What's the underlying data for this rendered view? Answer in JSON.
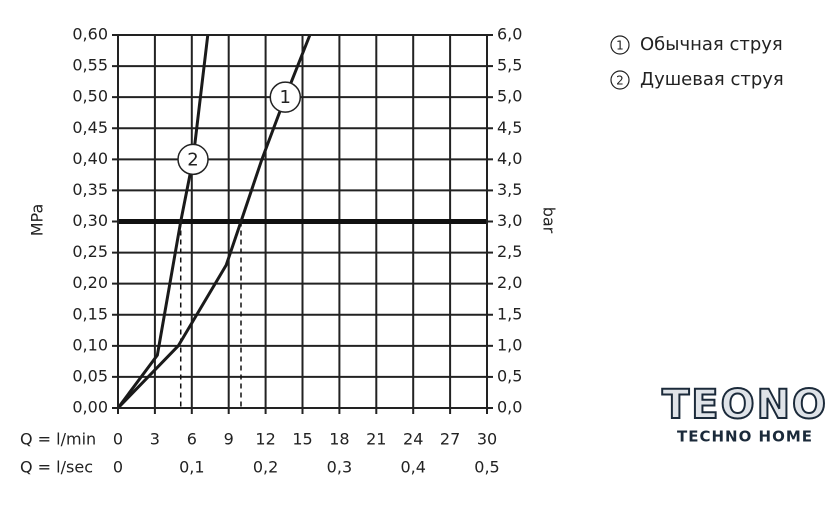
{
  "chart_data": {
    "type": "line",
    "y_title": "MPa",
    "y2_title": "bar",
    "x_title": "Q = l/min",
    "x2_title": "Q = l/sec",
    "series": [
      {
        "name": "Обычная струя",
        "marker_label": "1",
        "color": "#1a1a1a",
        "x": [
          0,
          4.9,
          8.8,
          10,
          11.7,
          13.6,
          15.6
        ],
        "values": [
          0,
          0.1,
          0.23,
          0.3,
          0.4,
          0.5,
          0.6
        ]
      },
      {
        "name": "Душевая струя",
        "marker_label": "2",
        "color": "#1a1a1a",
        "x": [
          0,
          3.2,
          5.1,
          6.1,
          7.3
        ],
        "values": [
          0,
          0.085,
          0.3,
          0.4,
          0.6
        ]
      }
    ],
    "xlim": [
      0,
      30
    ],
    "xticks": [
      0,
      3,
      6,
      9,
      12,
      15,
      18,
      21,
      24,
      27,
      30
    ],
    "x2lim": [
      0,
      0.5
    ],
    "x2ticks": [
      0,
      {
        "value": 0.1,
        "label": "0,1"
      },
      {
        "value": 0.2,
        "label": "0,2"
      },
      {
        "value": 0.3,
        "label": "0,3"
      },
      {
        "value": 0.4,
        "label": "0,4"
      },
      {
        "value": 0.5,
        "label": "0,5"
      }
    ],
    "ylim": [
      0,
      0.6
    ],
    "yticks": [
      {
        "value": 0,
        "label": "0,00"
      },
      {
        "value": 0.05,
        "label": "0,05"
      },
      {
        "value": 0.1,
        "label": "0,10"
      },
      {
        "value": 0.15,
        "label": "0,15"
      },
      {
        "value": 0.2,
        "label": "0,20"
      },
      {
        "value": 0.25,
        "label": "0,25"
      },
      {
        "value": 0.3,
        "label": "0,30"
      },
      {
        "value": 0.35,
        "label": "0,35"
      },
      {
        "value": 0.4,
        "label": "0,40"
      },
      {
        "value": 0.45,
        "label": "0,45"
      },
      {
        "value": 0.5,
        "label": "0,50"
      },
      {
        "value": 0.55,
        "label": "0,55"
      },
      {
        "value": 0.6,
        "label": "0,60"
      }
    ],
    "y2lim": [
      0,
      6
    ],
    "y2ticks": [
      {
        "value": 0,
        "label": "0,0"
      },
      {
        "value": 0.5,
        "label": "0,5"
      },
      {
        "value": 1,
        "label": "1,0"
      },
      {
        "value": 1.5,
        "label": "1,5"
      },
      {
        "value": 2,
        "label": "2,0"
      },
      {
        "value": 2.5,
        "label": "2,5"
      },
      {
        "value": 3,
        "label": "3,0"
      },
      {
        "value": 3.5,
        "label": "3,5"
      },
      {
        "value": 4,
        "label": "4,0"
      },
      {
        "value": 4.5,
        "label": "4,5"
      },
      {
        "value": 5,
        "label": "5,0"
      },
      {
        "value": 5.5,
        "label": "5,5"
      },
      {
        "value": 6,
        "label": "6,0"
      }
    ],
    "reference_line": 0.3,
    "drop_lines": [
      5.1,
      10
    ],
    "grid": true
  },
  "logo": {
    "name": "TEONO",
    "tagline": "TECHNO HOME"
  }
}
